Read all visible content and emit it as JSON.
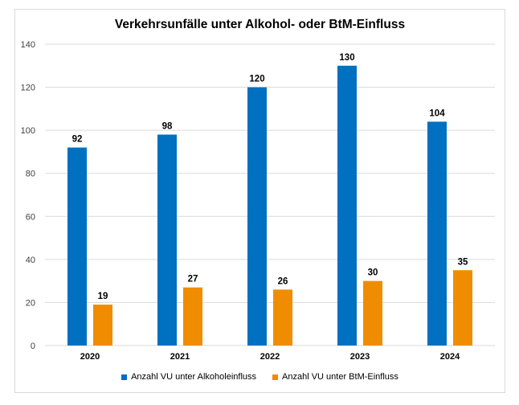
{
  "chart_data": {
    "type": "bar",
    "title": "Verkehrsunfälle unter Alkohol- oder BtM-Einfluss",
    "categories": [
      "2020",
      "2021",
      "2022",
      "2023",
      "2024"
    ],
    "series": [
      {
        "name": "Anzahl VU unter Alkoholeinfluss",
        "color": "#0070c0",
        "values": [
          92,
          98,
          120,
          130,
          104
        ]
      },
      {
        "name": "Anzahl VU unter BtM-Einfluss",
        "color": "#f08c00",
        "values": [
          19,
          27,
          26,
          30,
          35
        ]
      }
    ],
    "ylim": [
      0,
      140
    ],
    "yticks": [
      0,
      20,
      40,
      60,
      80,
      100,
      120,
      140
    ],
    "grid": true,
    "legend": "bottom",
    "xlabel": "",
    "ylabel": ""
  }
}
